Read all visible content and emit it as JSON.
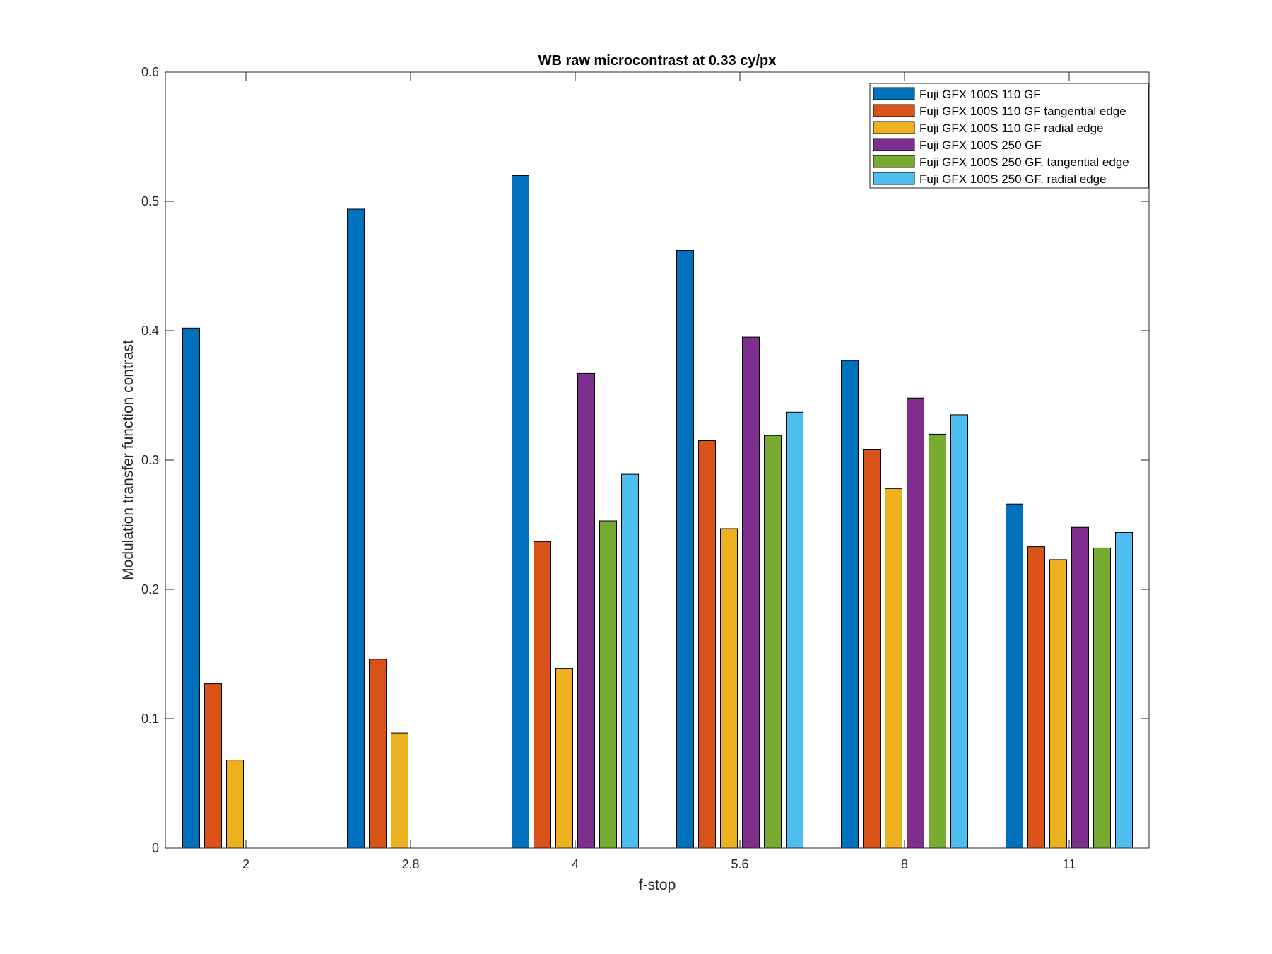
{
  "chart_data": {
    "type": "bar",
    "title": "WB raw  microcontrast at 0.33 cy/px",
    "xlabel": "f-stop",
    "ylabel": "Modulation transfer function contrast",
    "categories": [
      "2",
      "2.8",
      "4",
      "5.6",
      "8",
      "11"
    ],
    "ylim": [
      0,
      0.6
    ],
    "yticks": [
      "0",
      "0.1",
      "0.2",
      "0.3",
      "0.4",
      "0.5",
      "0.6"
    ],
    "legend_position": "top-right",
    "grid": false,
    "series": [
      {
        "name": "Fuji GFX 100S 110 GF",
        "color": "#0072BD",
        "values": [
          0.402,
          0.494,
          0.52,
          0.462,
          0.377,
          0.266
        ]
      },
      {
        "name": "Fuji GFX 100S 110 GF tangential edge",
        "color": "#D95319",
        "values": [
          0.127,
          0.146,
          0.237,
          0.315,
          0.308,
          0.233
        ]
      },
      {
        "name": "Fuji GFX 100S 110 GF radial edge",
        "color": "#EDB120",
        "values": [
          0.068,
          0.089,
          0.139,
          0.247,
          0.278,
          0.223
        ]
      },
      {
        "name": "Fuji GFX 100S 250 GF",
        "color": "#7E2F8E",
        "values": [
          0,
          0,
          0.367,
          0.395,
          0.348,
          0.248
        ]
      },
      {
        "name": "Fuji GFX 100S 250 GF, tangential edge",
        "color": "#77AC30",
        "values": [
          0,
          0,
          0.253,
          0.319,
          0.32,
          0.232
        ]
      },
      {
        "name": "Fuji GFX 100S 250 GF, radial edge",
        "color": "#4DBEEE",
        "values": [
          0,
          0,
          0.289,
          0.337,
          0.335,
          0.244
        ]
      }
    ]
  }
}
